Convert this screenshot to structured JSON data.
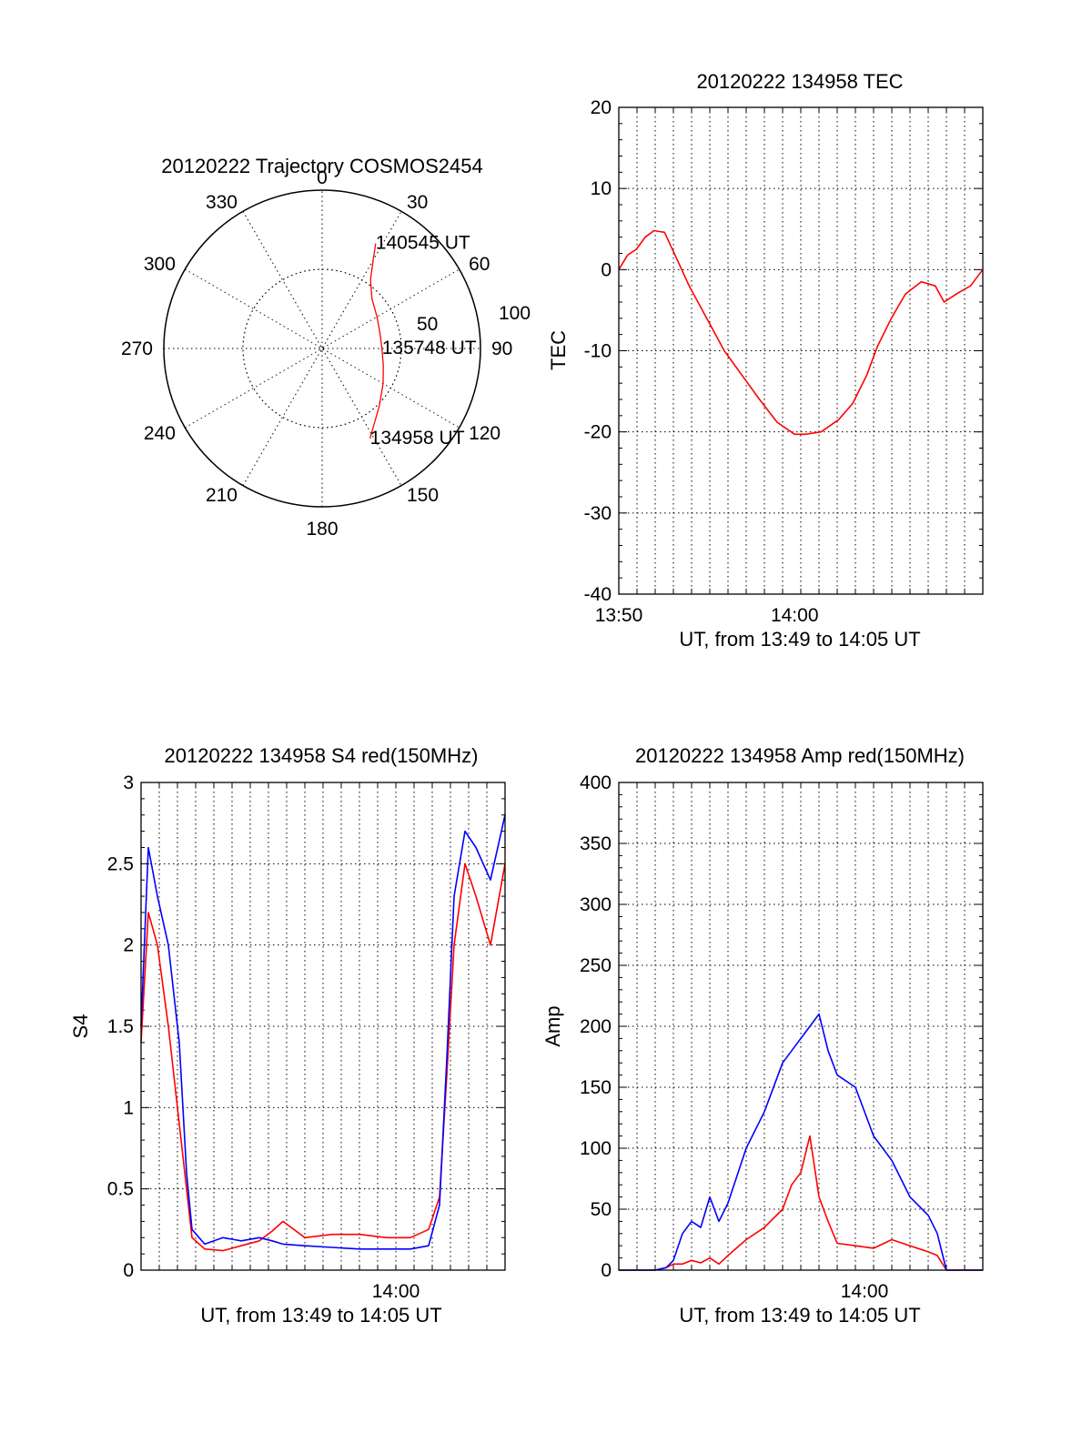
{
  "figure_colors": {
    "red_series": "#ff0000",
    "blue_series": "#0000ff",
    "axes": "#000000"
  },
  "chart_data": [
    {
      "id": "trajectory",
      "type": "polar",
      "title": "20120222 Trajectory COSMOS2454",
      "angle_labels": [
        "0",
        "30",
        "60",
        "90",
        "120",
        "150",
        "180",
        "210",
        "240",
        "270",
        "300",
        "330"
      ],
      "radial_labels": [
        "50",
        "100"
      ],
      "rmax": 90,
      "track": {
        "color": "#ff0000",
        "points": [
          [
            27,
            67
          ],
          [
            30,
            58
          ],
          [
            35,
            48
          ],
          [
            45,
            40
          ],
          [
            60,
            36
          ],
          [
            75,
            34
          ],
          [
            90,
            34
          ],
          [
            105,
            36
          ],
          [
            120,
            40
          ],
          [
            135,
            46
          ],
          [
            152,
            58
          ]
        ]
      },
      "annotations": [
        {
          "text": "140545 UT",
          "az": 27,
          "r": 67
        },
        {
          "text": "135748 UT",
          "az": 90,
          "r": 34
        },
        {
          "text": "134958 UT",
          "az": 152,
          "r": 58
        }
      ]
    },
    {
      "id": "tec",
      "type": "line",
      "title": "20120222 134958 TEC",
      "ylabel": "TEC",
      "xlabel": "UT, from 13:49 to 14:05 UT",
      "xlim": [
        0,
        20.7
      ],
      "ylim": [
        -40,
        20
      ],
      "yticks": [
        "20",
        "10",
        "0",
        "-10",
        "-20",
        "-30",
        "-40"
      ],
      "xticks": [
        {
          "x": 0,
          "label": "13:50"
        },
        {
          "x": 10,
          "label": "14:00"
        }
      ],
      "grid": true,
      "series": [
        {
          "color": "#ff0000",
          "x": [
            0,
            0.5,
            1,
            1.5,
            2,
            2.6,
            3.2,
            4,
            5,
            6,
            7,
            8,
            9,
            10,
            10.6,
            11.5,
            12.5,
            13.3,
            14.1,
            14.7,
            15.5,
            16.3,
            17.2,
            18,
            18.5,
            19.2,
            20,
            20.7
          ],
          "y": [
            0,
            1.8,
            2.5,
            4,
            4.8,
            4.6,
            1.8,
            -2,
            -6,
            -10,
            -13,
            -16,
            -18.8,
            -20.3,
            -20.3,
            -20,
            -18.5,
            -16.5,
            -13,
            -9.5,
            -6,
            -3,
            -1.5,
            -2,
            -4,
            -3,
            -2,
            0
          ]
        }
      ]
    },
    {
      "id": "s4",
      "type": "line",
      "title": "20120222 134958 S4 red(150MHz)",
      "ylabel": "S4",
      "xlabel": "UT, from 13:49 to 14:05 UT",
      "xlim": [
        0,
        20
      ],
      "ylim": [
        0,
        3
      ],
      "yticks": [
        "3",
        "2.5",
        "2",
        "1.5",
        "1",
        "0.5",
        "0"
      ],
      "xticks": [
        {
          "x": 14,
          "label": "14:00"
        }
      ],
      "grid": true,
      "series": [
        {
          "color": "#ff0000",
          "x": [
            0,
            0.4,
            0.9,
            1.5,
            2.1,
            2.5,
            2.8,
            3.5,
            4.5,
            5.5,
            6.5,
            7.2,
            7.8,
            9,
            10.5,
            12,
            13.5,
            14.8,
            15.8,
            16.4,
            16.8,
            17.2,
            17.8,
            18.4,
            19.2,
            20
          ],
          "y": [
            1.4,
            2.2,
            2.0,
            1.5,
            0.9,
            0.5,
            0.2,
            0.13,
            0.12,
            0.15,
            0.18,
            0.24,
            0.3,
            0.2,
            0.22,
            0.22,
            0.2,
            0.2,
            0.25,
            0.45,
            1.2,
            2.0,
            2.5,
            2.3,
            2.0,
            2.5
          ]
        },
        {
          "color": "#0000ff",
          "x": [
            0,
            0.4,
            0.9,
            1.5,
            2.1,
            2.5,
            2.8,
            3.5,
            4.5,
            5.5,
            6.5,
            7.2,
            7.8,
            9,
            10.5,
            12,
            13.5,
            14.8,
            15.8,
            16.4,
            16.8,
            17.2,
            17.8,
            18.4,
            19.2,
            20
          ],
          "y": [
            1.5,
            2.6,
            2.3,
            2.0,
            1.4,
            0.6,
            0.25,
            0.16,
            0.2,
            0.18,
            0.2,
            0.18,
            0.16,
            0.15,
            0.14,
            0.13,
            0.13,
            0.13,
            0.15,
            0.4,
            1.3,
            2.3,
            2.7,
            2.6,
            2.4,
            2.8
          ]
        }
      ]
    },
    {
      "id": "amp",
      "type": "line",
      "title": "20120222 134958 Amp red(150MHz)",
      "ylabel": "Amp",
      "xlabel": "UT, from 13:49 to 14:05 UT",
      "xlim": [
        0,
        20
      ],
      "ylim": [
        0,
        400
      ],
      "yticks": [
        "400",
        "350",
        "300",
        "250",
        "200",
        "150",
        "100",
        "50",
        "0"
      ],
      "xticks": [
        {
          "x": 13.5,
          "label": "14:00"
        }
      ],
      "grid": true,
      "series": [
        {
          "color": "#ff0000",
          "x": [
            0,
            2,
            2.6,
            3,
            3.5,
            4,
            4.5,
            5,
            5.5,
            6,
            7,
            8,
            9,
            9.5,
            10,
            10.5,
            11,
            11.5,
            12,
            13,
            14,
            15,
            16,
            17,
            17.5,
            18,
            19,
            20
          ],
          "y": [
            0,
            0,
            2,
            5,
            5,
            8,
            6,
            10,
            5,
            12,
            25,
            35,
            50,
            70,
            80,
            110,
            60,
            40,
            22,
            20,
            18,
            25,
            20,
            15,
            12,
            0,
            0,
            0
          ]
        },
        {
          "color": "#0000ff",
          "x": [
            0,
            2,
            2.6,
            3,
            3.5,
            4,
            4.5,
            5,
            5.5,
            6,
            7,
            8,
            9,
            9.5,
            10,
            10.5,
            11,
            11.5,
            12,
            13,
            14,
            15,
            16,
            17,
            17.5,
            18,
            19,
            20
          ],
          "y": [
            0,
            0,
            2,
            8,
            30,
            40,
            35,
            60,
            40,
            55,
            100,
            130,
            170,
            180,
            190,
            200,
            210,
            180,
            160,
            150,
            110,
            90,
            60,
            45,
            30,
            0,
            0,
            0
          ]
        }
      ]
    }
  ]
}
